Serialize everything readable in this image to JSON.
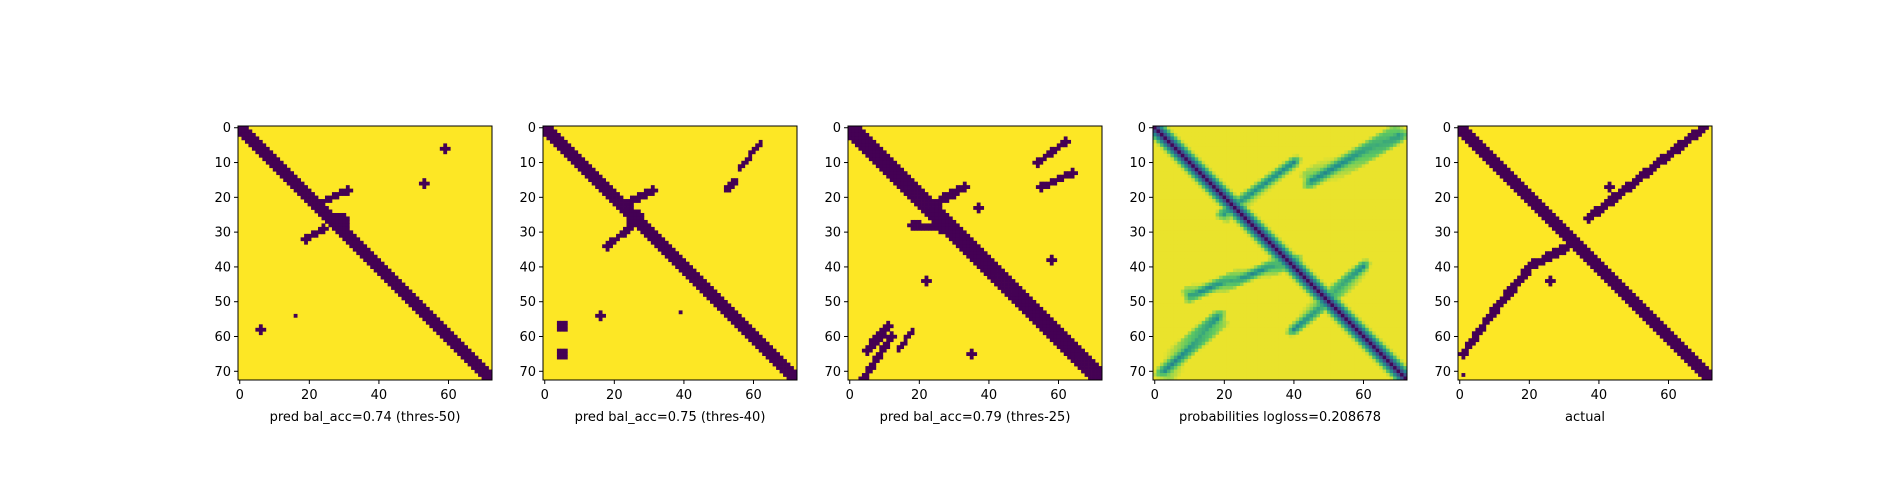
{
  "colors": {
    "background_yellow": "#fde725",
    "dark_purple": "#440154",
    "colormap": "viridis"
  },
  "chart_data": [
    {
      "type": "heatmap",
      "xlabel": "pred bal_acc=0.74 (thres-50)",
      "matrix_size": 73,
      "xlim": [
        0,
        72
      ],
      "ylim": [
        72,
        0
      ],
      "xticks": [
        "0",
        "20",
        "40",
        "60"
      ],
      "yticks": [
        "0",
        "10",
        "20",
        "30",
        "40",
        "50",
        "60",
        "70"
      ],
      "features": [
        {
          "kind": "diagonal",
          "from": [
            0,
            0
          ],
          "to": [
            72,
            72
          ],
          "width": 2
        },
        {
          "kind": "segment",
          "from": [
            22,
            22
          ],
          "to": [
            31,
            18
          ],
          "width": 1
        },
        {
          "kind": "segment",
          "from": [
            24,
            29
          ],
          "to": [
            19,
            32
          ],
          "width": 1
        },
        {
          "kind": "blob",
          "x": 29,
          "y": 27,
          "r": 2
        },
        {
          "kind": "blob",
          "x": 59,
          "y": 6,
          "r": 0.8
        },
        {
          "kind": "blob",
          "x": 53,
          "y": 16,
          "r": 0.8
        },
        {
          "kind": "blob",
          "x": 6,
          "y": 58,
          "r": 0.8
        },
        {
          "kind": "blob",
          "x": 16,
          "y": 54,
          "r": 0.6
        }
      ]
    },
    {
      "type": "heatmap",
      "xlabel": "pred bal_acc=0.75 (thres-40)",
      "matrix_size": 73,
      "xlim": [
        0,
        72
      ],
      "ylim": [
        72,
        0
      ],
      "xticks": [
        "0",
        "20",
        "40",
        "60"
      ],
      "yticks": [
        "0",
        "10",
        "20",
        "30",
        "40",
        "50",
        "60",
        "70"
      ],
      "features": [
        {
          "kind": "diagonal",
          "from": [
            0,
            0
          ],
          "to": [
            72,
            72
          ],
          "width": 2
        },
        {
          "kind": "segment",
          "from": [
            23,
            22
          ],
          "to": [
            31,
            18
          ],
          "width": 1
        },
        {
          "kind": "segment",
          "from": [
            24,
            29
          ],
          "to": [
            18,
            34
          ],
          "width": 1
        },
        {
          "kind": "blob",
          "x": 26,
          "y": 26,
          "r": 2
        },
        {
          "kind": "segment",
          "from": [
            56,
            12
          ],
          "to": [
            62,
            4
          ],
          "width": 0.8
        },
        {
          "kind": "segment",
          "from": [
            52,
            18
          ],
          "to": [
            55,
            15
          ],
          "width": 0.8
        },
        {
          "kind": "blob",
          "x": 5,
          "y": 57,
          "r": 1.2
        },
        {
          "kind": "blob",
          "x": 5,
          "y": 65,
          "r": 1.2
        },
        {
          "kind": "blob",
          "x": 16,
          "y": 54,
          "r": 1
        },
        {
          "kind": "blob",
          "x": 40,
          "y": 38,
          "r": 0.6
        },
        {
          "kind": "blob",
          "x": 39,
          "y": 53,
          "r": 0.6
        }
      ]
    },
    {
      "type": "heatmap",
      "xlabel": "pred bal_acc=0.79 (thres-25)",
      "matrix_size": 73,
      "xlim": [
        0,
        72
      ],
      "ylim": [
        72,
        0
      ],
      "xticks": [
        "0",
        "20",
        "40",
        "60"
      ],
      "yticks": [
        "0",
        "10",
        "20",
        "30",
        "40",
        "50",
        "60",
        "70"
      ],
      "features": [
        {
          "kind": "diagonal",
          "from": [
            0,
            0
          ],
          "to": [
            72,
            72
          ],
          "width": 2.2
        },
        {
          "kind": "segment",
          "from": [
            24,
            22
          ],
          "to": [
            33,
            17
          ],
          "width": 1.2
        },
        {
          "kind": "segment",
          "from": [
            18,
            28
          ],
          "to": [
            28,
            29
          ],
          "width": 1.2
        },
        {
          "kind": "segment",
          "from": [
            54,
            10
          ],
          "to": [
            62,
            4
          ],
          "width": 1
        },
        {
          "kind": "segment",
          "from": [
            55,
            17
          ],
          "to": [
            64,
            13
          ],
          "width": 1
        },
        {
          "kind": "segment",
          "from": [
            4,
            72
          ],
          "to": [
            12,
            60
          ],
          "width": 1
        },
        {
          "kind": "segment",
          "from": [
            5,
            64
          ],
          "to": [
            11,
            57
          ],
          "width": 1.2
        },
        {
          "kind": "segment",
          "from": [
            14,
            64
          ],
          "to": [
            18,
            58
          ],
          "width": 0.8
        },
        {
          "kind": "blob",
          "x": 22,
          "y": 44,
          "r": 1
        },
        {
          "kind": "blob",
          "x": 37,
          "y": 23,
          "r": 0.8
        },
        {
          "kind": "blob",
          "x": 35,
          "y": 65,
          "r": 0.8
        },
        {
          "kind": "blob",
          "x": 58,
          "y": 38,
          "r": 0.8
        }
      ]
    },
    {
      "type": "heatmap",
      "xlabel": "probabilities logloss=0.208678",
      "matrix_size": 73,
      "xlim": [
        0,
        72
      ],
      "ylim": [
        72,
        0
      ],
      "xticks": [
        "0",
        "20",
        "40",
        "60"
      ],
      "yticks": [
        "0",
        "10",
        "20",
        "30",
        "40",
        "50",
        "60",
        "70"
      ],
      "features": [
        {
          "kind": "soft-diagonal",
          "from": [
            0,
            0
          ],
          "to": [
            72,
            72
          ],
          "width": 3
        },
        {
          "kind": "soft-segment",
          "from": [
            20,
            25
          ],
          "to": [
            40,
            10
          ],
          "width": 3
        },
        {
          "kind": "soft-segment",
          "from": [
            45,
            15
          ],
          "to": [
            70,
            2
          ],
          "width": 4
        },
        {
          "kind": "soft-segment",
          "from": [
            10,
            48
          ],
          "to": [
            40,
            38
          ],
          "width": 3
        },
        {
          "kind": "soft-segment",
          "from": [
            3,
            70
          ],
          "to": [
            18,
            55
          ],
          "width": 4
        },
        {
          "kind": "soft-segment",
          "from": [
            40,
            58
          ],
          "to": [
            60,
            40
          ],
          "width": 3
        }
      ]
    },
    {
      "type": "heatmap",
      "xlabel": "actual",
      "matrix_size": 73,
      "xlim": [
        0,
        72
      ],
      "ylim": [
        72,
        0
      ],
      "xticks": [
        "0",
        "20",
        "40",
        "60"
      ],
      "yticks": [
        "0",
        "10",
        "20",
        "30",
        "40",
        "50",
        "60",
        "70"
      ],
      "features": [
        {
          "kind": "diagonal",
          "from": [
            0,
            0
          ],
          "to": [
            72,
            72
          ],
          "width": 1.5
        },
        {
          "kind": "segment",
          "from": [
            70,
            0
          ],
          "to": [
            37,
            26
          ],
          "width": 1.2
        },
        {
          "kind": "segment",
          "from": [
            33,
            33
          ],
          "to": [
            22,
            39
          ],
          "width": 1.2
        },
        {
          "kind": "segment",
          "from": [
            21,
            39
          ],
          "to": [
            8,
            55
          ],
          "width": 1.2
        },
        {
          "kind": "segment",
          "from": [
            8,
            55
          ],
          "to": [
            1,
            65
          ],
          "width": 1
        },
        {
          "kind": "blob",
          "x": 43,
          "y": 17,
          "r": 1
        },
        {
          "kind": "blob",
          "x": 26,
          "y": 44,
          "r": 1
        },
        {
          "kind": "blob",
          "x": 1,
          "y": 71,
          "r": 0.6
        }
      ]
    }
  ]
}
